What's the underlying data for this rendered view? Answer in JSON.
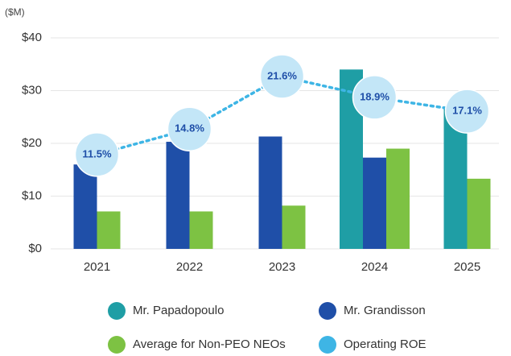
{
  "chart_data": {
    "type": "bar",
    "y_label": "($M)",
    "categories": [
      "2021",
      "2022",
      "2023",
      "2024",
      "2025"
    ],
    "series": [
      {
        "name": "Mr. Papadopoulo",
        "color": "#1f9ea5",
        "values": [
          null,
          null,
          null,
          34,
          27
        ]
      },
      {
        "name": "Mr. Grandisson",
        "color": "#1f4fa8",
        "values": [
          16,
          20.3,
          21.3,
          17.3,
          null
        ]
      },
      {
        "name": "Average for Non-PEO NEOs",
        "color": "#7dc243",
        "values": [
          7.1,
          7.1,
          8.2,
          19,
          13.3
        ]
      },
      {
        "name": "Operating ROE",
        "color": "#3eb5e5",
        "type": "line",
        "axis": "y2",
        "values": [
          11.5,
          14.8,
          21.6,
          18.9,
          17.1
        ],
        "value_labels": [
          "11.5%",
          "14.8%",
          "21.6%",
          "18.9%",
          "17.1%"
        ]
      }
    ],
    "ylim": [
      0,
      40
    ],
    "yticks": [
      {
        "value": 0,
        "label": "$0"
      },
      {
        "value": 10,
        "label": "$10"
      },
      {
        "value": 20,
        "label": "$20"
      },
      {
        "value": 30,
        "label": "$30"
      },
      {
        "value": 40,
        "label": "$40"
      }
    ],
    "y2lim": [
      -0.7,
      26.6
    ],
    "grid": true
  }
}
